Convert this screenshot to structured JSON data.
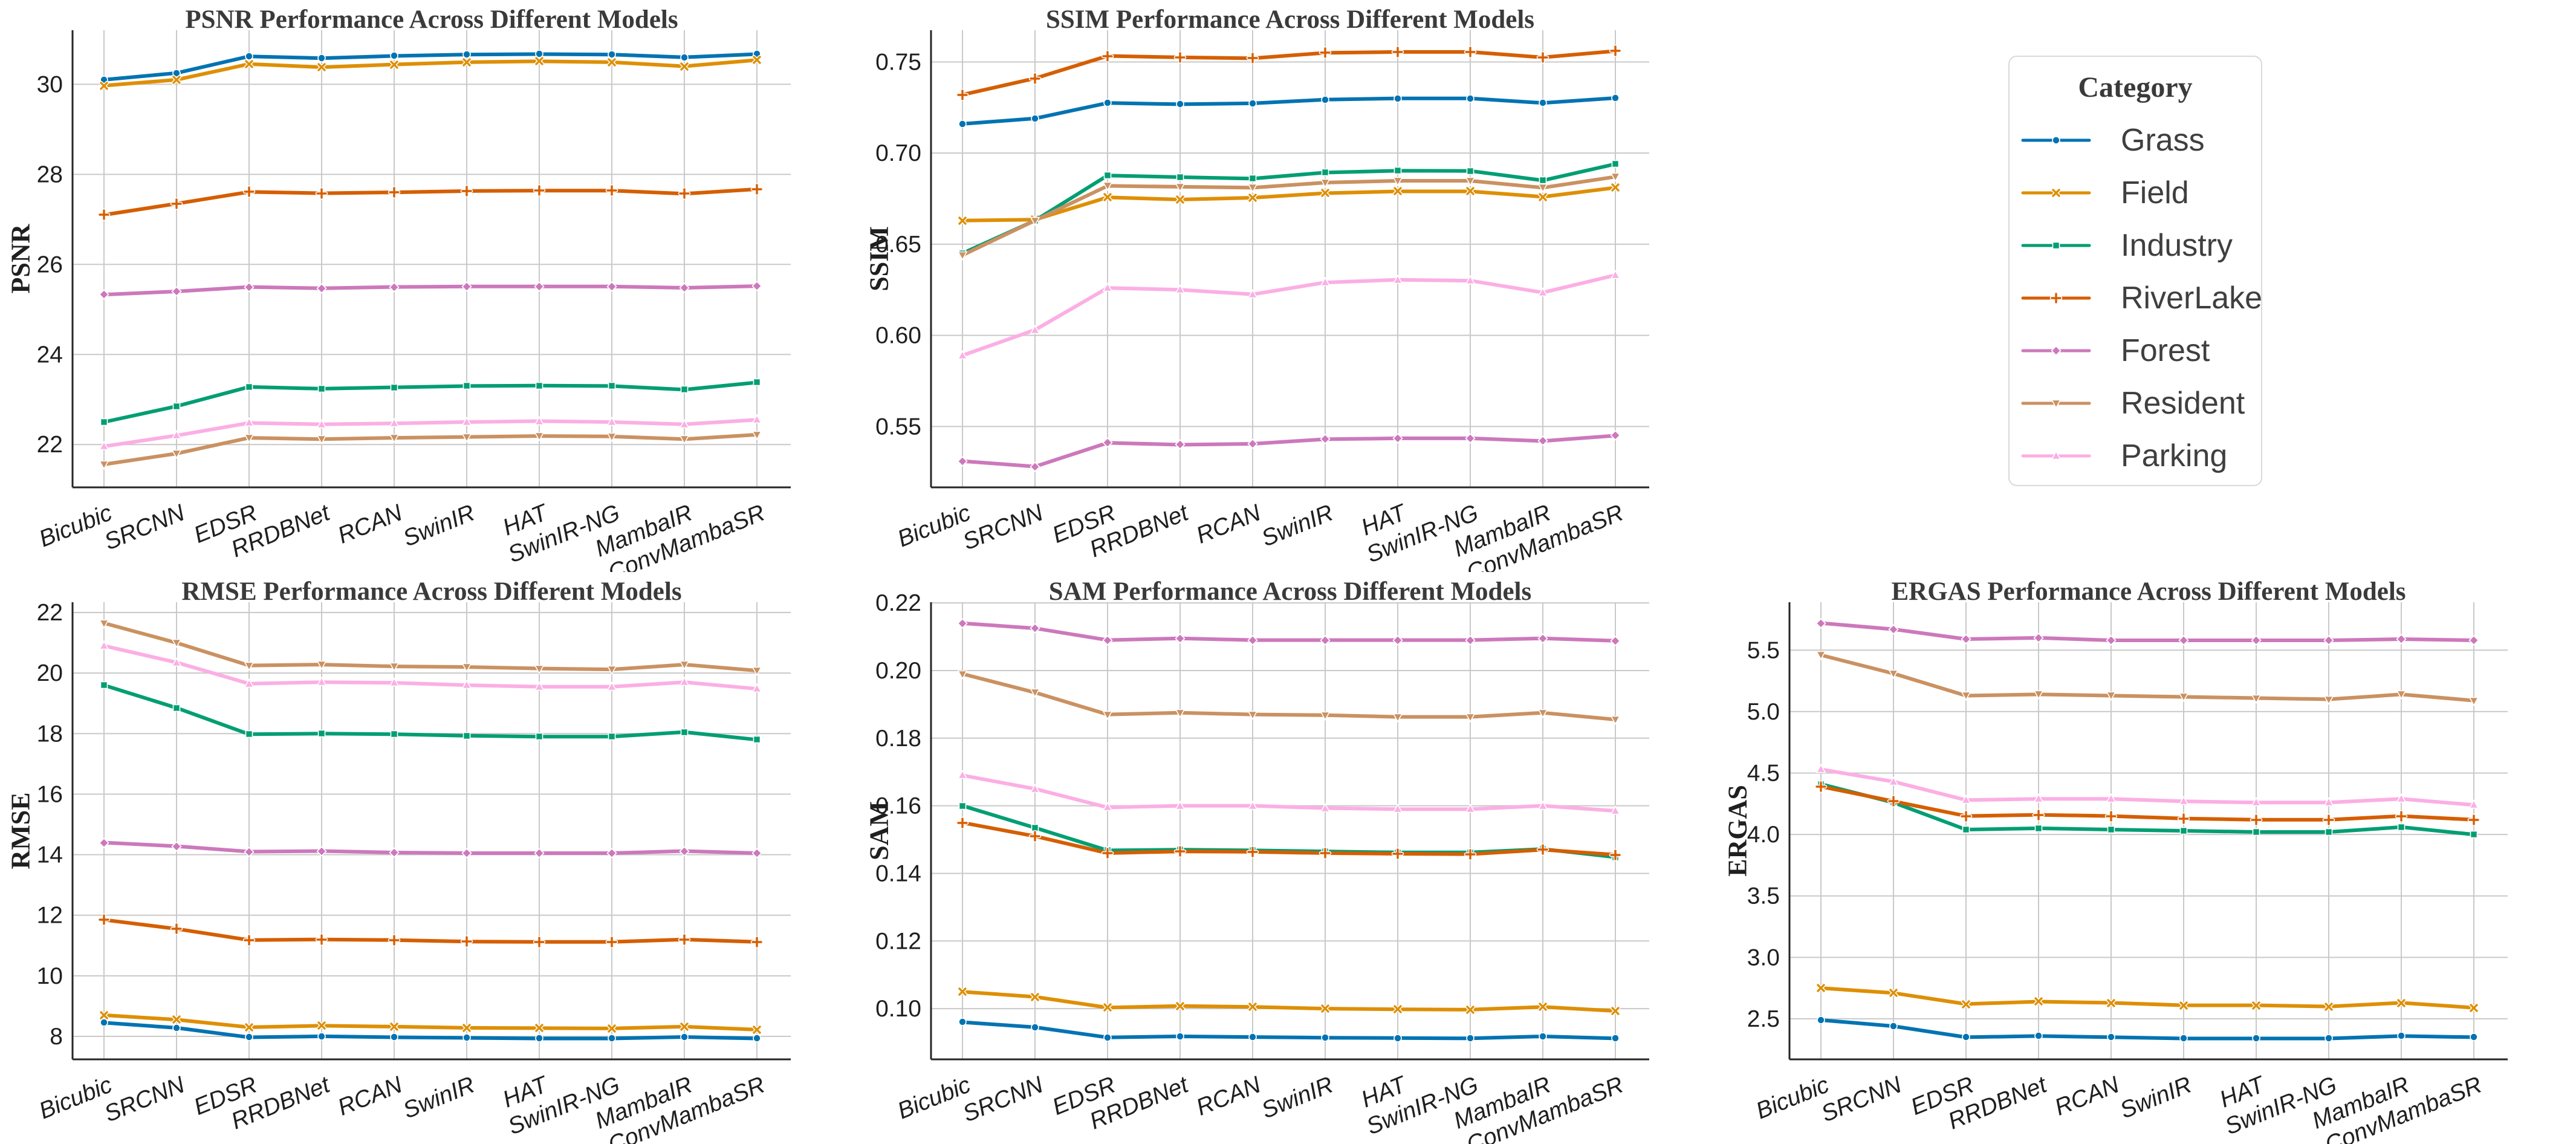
{
  "figure_title": "Performance Across Different Models",
  "models": [
    "Bicubic",
    "SRCNN",
    "EDSR",
    "RRDBNet",
    "RCAN",
    "SwinIR",
    "HAT",
    "SwinIR-NG",
    "MambaIR",
    "ConvMambaSR"
  ],
  "legend": {
    "title": "Category",
    "entries": [
      {
        "label": "Grass"
      },
      {
        "label": "Field"
      },
      {
        "label": "Industry"
      },
      {
        "label": "RiverLake"
      },
      {
        "label": "Forest"
      },
      {
        "label": "Resident"
      },
      {
        "label": "Parking"
      }
    ]
  },
  "series_styles": {
    "Grass": {
      "color": "#0173b2",
      "marker": "circle"
    },
    "Field": {
      "color": "#de8f05",
      "marker": "x"
    },
    "Industry": {
      "color": "#029e73",
      "marker": "square"
    },
    "RiverLake": {
      "color": "#d55e00",
      "marker": "plus"
    },
    "Forest": {
      "color": "#cc78bc",
      "marker": "diamond"
    },
    "Resident": {
      "color": "#ca9161",
      "marker": "triangle-down"
    },
    "Parking": {
      "color": "#fbafe4",
      "marker": "triangle-up"
    }
  },
  "style_colors": {
    "grid": "#c9c9c9",
    "spine": "#262626",
    "tick_text": "#1f1f1f",
    "title_text": "#3a3a3a",
    "legend_border": "#d9d9d9"
  },
  "chart_data": [
    {
      "id": "psnr",
      "type": "line",
      "title": "PSNR Performance Across Different Models",
      "ylabel": "PSNR",
      "categories": [
        "Bicubic",
        "SRCNN",
        "EDSR",
        "RRDBNet",
        "RCAN",
        "SwinIR",
        "HAT",
        "SwinIR-NG",
        "MambaIR",
        "ConvMambaSR"
      ],
      "yticks": [
        22,
        24,
        26,
        28,
        30
      ],
      "ytick_decimals": 0,
      "ylim": [
        21.05,
        31.2
      ],
      "grid": true,
      "series": [
        {
          "name": "Grass",
          "values": [
            30.1,
            30.25,
            30.62,
            30.58,
            30.63,
            30.66,
            30.67,
            30.66,
            30.6,
            30.67
          ]
        },
        {
          "name": "Field",
          "values": [
            29.97,
            30.1,
            30.45,
            30.38,
            30.44,
            30.49,
            30.51,
            30.49,
            30.4,
            30.54
          ]
        },
        {
          "name": "Industry",
          "values": [
            22.5,
            22.85,
            23.28,
            23.24,
            23.27,
            23.3,
            23.31,
            23.3,
            23.22,
            23.38
          ]
        },
        {
          "name": "RiverLake",
          "values": [
            27.1,
            27.35,
            27.61,
            27.58,
            27.6,
            27.63,
            27.64,
            27.64,
            27.57,
            27.67
          ]
        },
        {
          "name": "Forest",
          "values": [
            25.33,
            25.4,
            25.5,
            25.47,
            25.5,
            25.51,
            25.51,
            25.51,
            25.48,
            25.52
          ]
        },
        {
          "name": "Resident",
          "values": [
            21.56,
            21.8,
            22.15,
            22.12,
            22.15,
            22.17,
            22.19,
            22.18,
            22.12,
            22.22
          ]
        },
        {
          "name": "Parking",
          "values": [
            21.96,
            22.2,
            22.48,
            22.45,
            22.47,
            22.5,
            22.52,
            22.5,
            22.45,
            22.55
          ]
        }
      ]
    },
    {
      "id": "ssim",
      "type": "line",
      "title": "SSIM Performance Across Different Models",
      "ylabel": "SSIM",
      "categories": [
        "Bicubic",
        "SRCNN",
        "EDSR",
        "RRDBNet",
        "RCAN",
        "SwinIR",
        "HAT",
        "SwinIR-NG",
        "MambaIR",
        "ConvMambaSR"
      ],
      "yticks": [
        0.55,
        0.6,
        0.65,
        0.7,
        0.75
      ],
      "ytick_decimals": 2,
      "ylim": [
        0.5166,
        0.7674
      ],
      "grid": true,
      "series": [
        {
          "name": "Grass",
          "values": [
            0.716,
            0.719,
            0.7275,
            0.7268,
            0.7273,
            0.7293,
            0.73,
            0.73,
            0.7275,
            0.7302
          ]
        },
        {
          "name": "Field",
          "values": [
            0.663,
            0.6635,
            0.6757,
            0.6745,
            0.6755,
            0.678,
            0.679,
            0.679,
            0.676,
            0.681
          ]
        },
        {
          "name": "Industry",
          "values": [
            0.645,
            0.663,
            0.6877,
            0.6868,
            0.686,
            0.6893,
            0.6903,
            0.6902,
            0.685,
            0.694
          ]
        },
        {
          "name": "RiverLake",
          "values": [
            0.732,
            0.741,
            0.7533,
            0.7525,
            0.752,
            0.755,
            0.7555,
            0.7555,
            0.7525,
            0.756
          ]
        },
        {
          "name": "Forest",
          "values": [
            0.531,
            0.528,
            0.541,
            0.54,
            0.5405,
            0.543,
            0.5435,
            0.5435,
            0.542,
            0.545
          ]
        },
        {
          "name": "Resident",
          "values": [
            0.644,
            0.663,
            0.682,
            0.6815,
            0.681,
            0.6838,
            0.6848,
            0.6848,
            0.681,
            0.687
          ]
        },
        {
          "name": "Parking",
          "values": [
            0.589,
            0.603,
            0.626,
            0.625,
            0.6225,
            0.629,
            0.6305,
            0.63,
            0.6235,
            0.633
          ]
        }
      ]
    },
    {
      "id": "rmse",
      "type": "line",
      "title": "RMSE Performance Across Different Models",
      "ylabel": "RMSE",
      "categories": [
        "Bicubic",
        "SRCNN",
        "EDSR",
        "RRDBNet",
        "RCAN",
        "SwinIR",
        "HAT",
        "SwinIR-NG",
        "MambaIR",
        "ConvMambaSR"
      ],
      "yticks": [
        8,
        10,
        12,
        14,
        16,
        18,
        20,
        22
      ],
      "ytick_decimals": 0,
      "ylim": [
        7.24,
        22.34
      ],
      "grid": true,
      "series": [
        {
          "name": "Grass",
          "values": [
            8.45,
            8.28,
            7.97,
            8.0,
            7.97,
            7.95,
            7.93,
            7.93,
            7.98,
            7.93
          ]
        },
        {
          "name": "Field",
          "values": [
            8.7,
            8.55,
            8.3,
            8.35,
            8.32,
            8.28,
            8.27,
            8.26,
            8.32,
            8.22
          ]
        },
        {
          "name": "Industry",
          "values": [
            19.6,
            18.85,
            17.98,
            18.0,
            17.98,
            17.93,
            17.9,
            17.9,
            18.05,
            17.8
          ]
        },
        {
          "name": "RiverLake",
          "values": [
            11.85,
            11.55,
            11.18,
            11.2,
            11.18,
            11.13,
            11.12,
            11.12,
            11.2,
            11.12
          ]
        },
        {
          "name": "Forest",
          "values": [
            14.4,
            14.28,
            14.1,
            14.12,
            14.07,
            14.05,
            14.05,
            14.05,
            14.12,
            14.05
          ]
        },
        {
          "name": "Resident",
          "values": [
            21.65,
            21.0,
            20.25,
            20.28,
            20.22,
            20.2,
            20.15,
            20.12,
            20.28,
            20.08
          ]
        },
        {
          "name": "Parking",
          "values": [
            20.9,
            20.35,
            19.65,
            19.7,
            19.68,
            19.6,
            19.55,
            19.55,
            19.7,
            19.48
          ]
        }
      ]
    },
    {
      "id": "sam",
      "type": "line",
      "title": "SAM Performance Across Different Models",
      "ylabel": "SAM",
      "categories": [
        "Bicubic",
        "SRCNN",
        "EDSR",
        "RRDBNet",
        "RCAN",
        "SwinIR",
        "HAT",
        "SwinIR-NG",
        "MambaIR",
        "ConvMambaSR"
      ],
      "yticks": [
        0.1,
        0.12,
        0.14,
        0.16,
        0.18,
        0.2,
        0.22
      ],
      "ytick_decimals": 2,
      "ylim": [
        0.085,
        0.2202
      ],
      "grid": true,
      "series": [
        {
          "name": "Grass",
          "values": [
            0.096,
            0.0945,
            0.0915,
            0.0918,
            0.0916,
            0.0914,
            0.0913,
            0.0912,
            0.0918,
            0.0912
          ]
        },
        {
          "name": "Field",
          "values": [
            0.105,
            0.1035,
            0.1003,
            0.1008,
            0.1005,
            0.1,
            0.0998,
            0.0997,
            0.1005,
            0.0993
          ]
        },
        {
          "name": "Industry",
          "values": [
            0.16,
            0.1535,
            0.1468,
            0.147,
            0.1468,
            0.1465,
            0.1462,
            0.1462,
            0.1472,
            0.1448
          ]
        },
        {
          "name": "RiverLake",
          "values": [
            0.155,
            0.151,
            0.146,
            0.1465,
            0.1464,
            0.146,
            0.1458,
            0.1457,
            0.147,
            0.1455
          ]
        },
        {
          "name": "Forest",
          "values": [
            0.214,
            0.2125,
            0.209,
            0.2095,
            0.209,
            0.209,
            0.209,
            0.209,
            0.2095,
            0.2088
          ]
        },
        {
          "name": "Resident",
          "values": [
            0.199,
            0.1935,
            0.187,
            0.1875,
            0.187,
            0.1868,
            0.1863,
            0.1863,
            0.1875,
            0.1855
          ]
        },
        {
          "name": "Parking",
          "values": [
            0.169,
            0.165,
            0.1595,
            0.16,
            0.16,
            0.1593,
            0.159,
            0.159,
            0.16,
            0.1585
          ]
        }
      ]
    },
    {
      "id": "ergas",
      "type": "line",
      "title": "ERGAS Performance Across Different Models",
      "ylabel": "ERGAS",
      "categories": [
        "Bicubic",
        "SRCNN",
        "EDSR",
        "RRDBNet",
        "RCAN",
        "SwinIR",
        "HAT",
        "SwinIR-NG",
        "MambaIR",
        "ConvMambaSR"
      ],
      "yticks": [
        2.5,
        3.0,
        3.5,
        4.0,
        4.5,
        5.0,
        5.5
      ],
      "ytick_decimals": 1,
      "ylim": [
        2.17,
        5.89
      ],
      "grid": true,
      "series": [
        {
          "name": "Grass",
          "values": [
            2.49,
            2.44,
            2.35,
            2.36,
            2.35,
            2.34,
            2.34,
            2.34,
            2.36,
            2.35
          ]
        },
        {
          "name": "Field",
          "values": [
            2.75,
            2.71,
            2.62,
            2.64,
            2.63,
            2.61,
            2.61,
            2.6,
            2.63,
            2.59
          ]
        },
        {
          "name": "Industry",
          "values": [
            4.41,
            4.26,
            4.04,
            4.05,
            4.04,
            4.03,
            4.02,
            4.02,
            4.06,
            4.0
          ]
        },
        {
          "name": "RiverLake",
          "values": [
            4.39,
            4.27,
            4.15,
            4.16,
            4.15,
            4.13,
            4.12,
            4.12,
            4.15,
            4.12
          ]
        },
        {
          "name": "Forest",
          "values": [
            5.72,
            5.67,
            5.59,
            5.6,
            5.58,
            5.58,
            5.58,
            5.58,
            5.59,
            5.58
          ]
        },
        {
          "name": "Resident",
          "values": [
            5.46,
            5.31,
            5.13,
            5.14,
            5.13,
            5.12,
            5.11,
            5.1,
            5.14,
            5.09
          ]
        },
        {
          "name": "Parking",
          "values": [
            4.53,
            4.43,
            4.28,
            4.29,
            4.29,
            4.27,
            4.26,
            4.26,
            4.29,
            4.24
          ]
        }
      ]
    }
  ]
}
